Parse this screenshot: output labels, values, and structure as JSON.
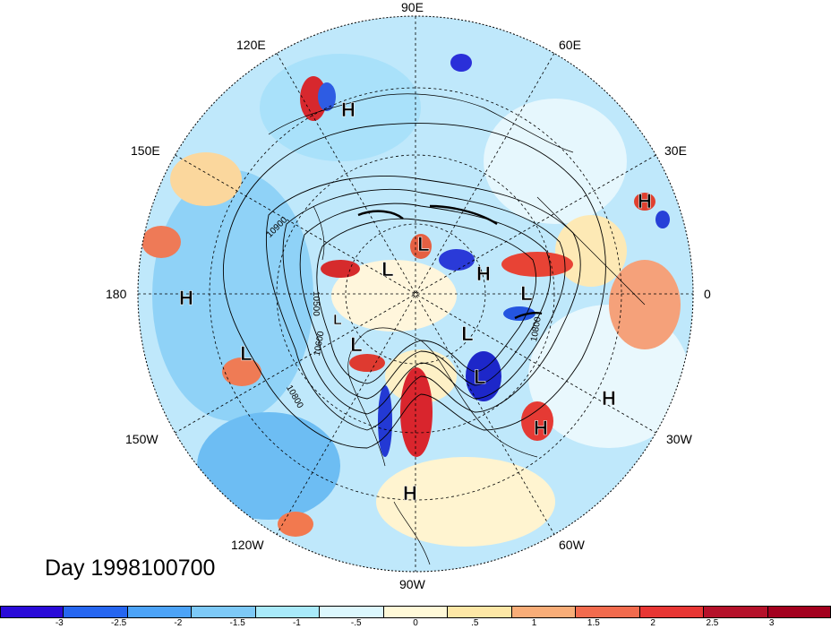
{
  "map": {
    "day_label": "Day 1998100700",
    "lon_labels": {
      "e90": "90E",
      "e60": "60E",
      "e30": "30E",
      "zero": "0",
      "w30": "30W",
      "w60": "60W",
      "w90": "90W",
      "w120": "120W",
      "w150": "150W",
      "d180": "180",
      "e150": "150E",
      "e120": "120E"
    },
    "contour_labels": {
      "a": "10900",
      "b": "10500",
      "c": "10600",
      "d": "10800",
      "e": "10800"
    },
    "highs": [
      "H",
      "H",
      "H",
      "H",
      "H",
      "H",
      "H"
    ],
    "lows": [
      "L",
      "L",
      "L",
      "L",
      "L",
      "L",
      "L",
      "L"
    ]
  },
  "colorbar": {
    "colors": [
      "#2a0bd9",
      "#2666f0",
      "#4ca3f7",
      "#7dc9f7",
      "#a9eafa",
      "#dcf7fd",
      "#fff9d8",
      "#fde7a6",
      "#f8ad78",
      "#f26b4e",
      "#e83634",
      "#b5112a",
      "#a3001e"
    ],
    "ticks": [
      "-3",
      "-2.5",
      "-2",
      "-1.5",
      "-1",
      "-.5",
      "0",
      ".5",
      "1",
      "1.5",
      "2",
      "2.5",
      "3"
    ]
  }
}
